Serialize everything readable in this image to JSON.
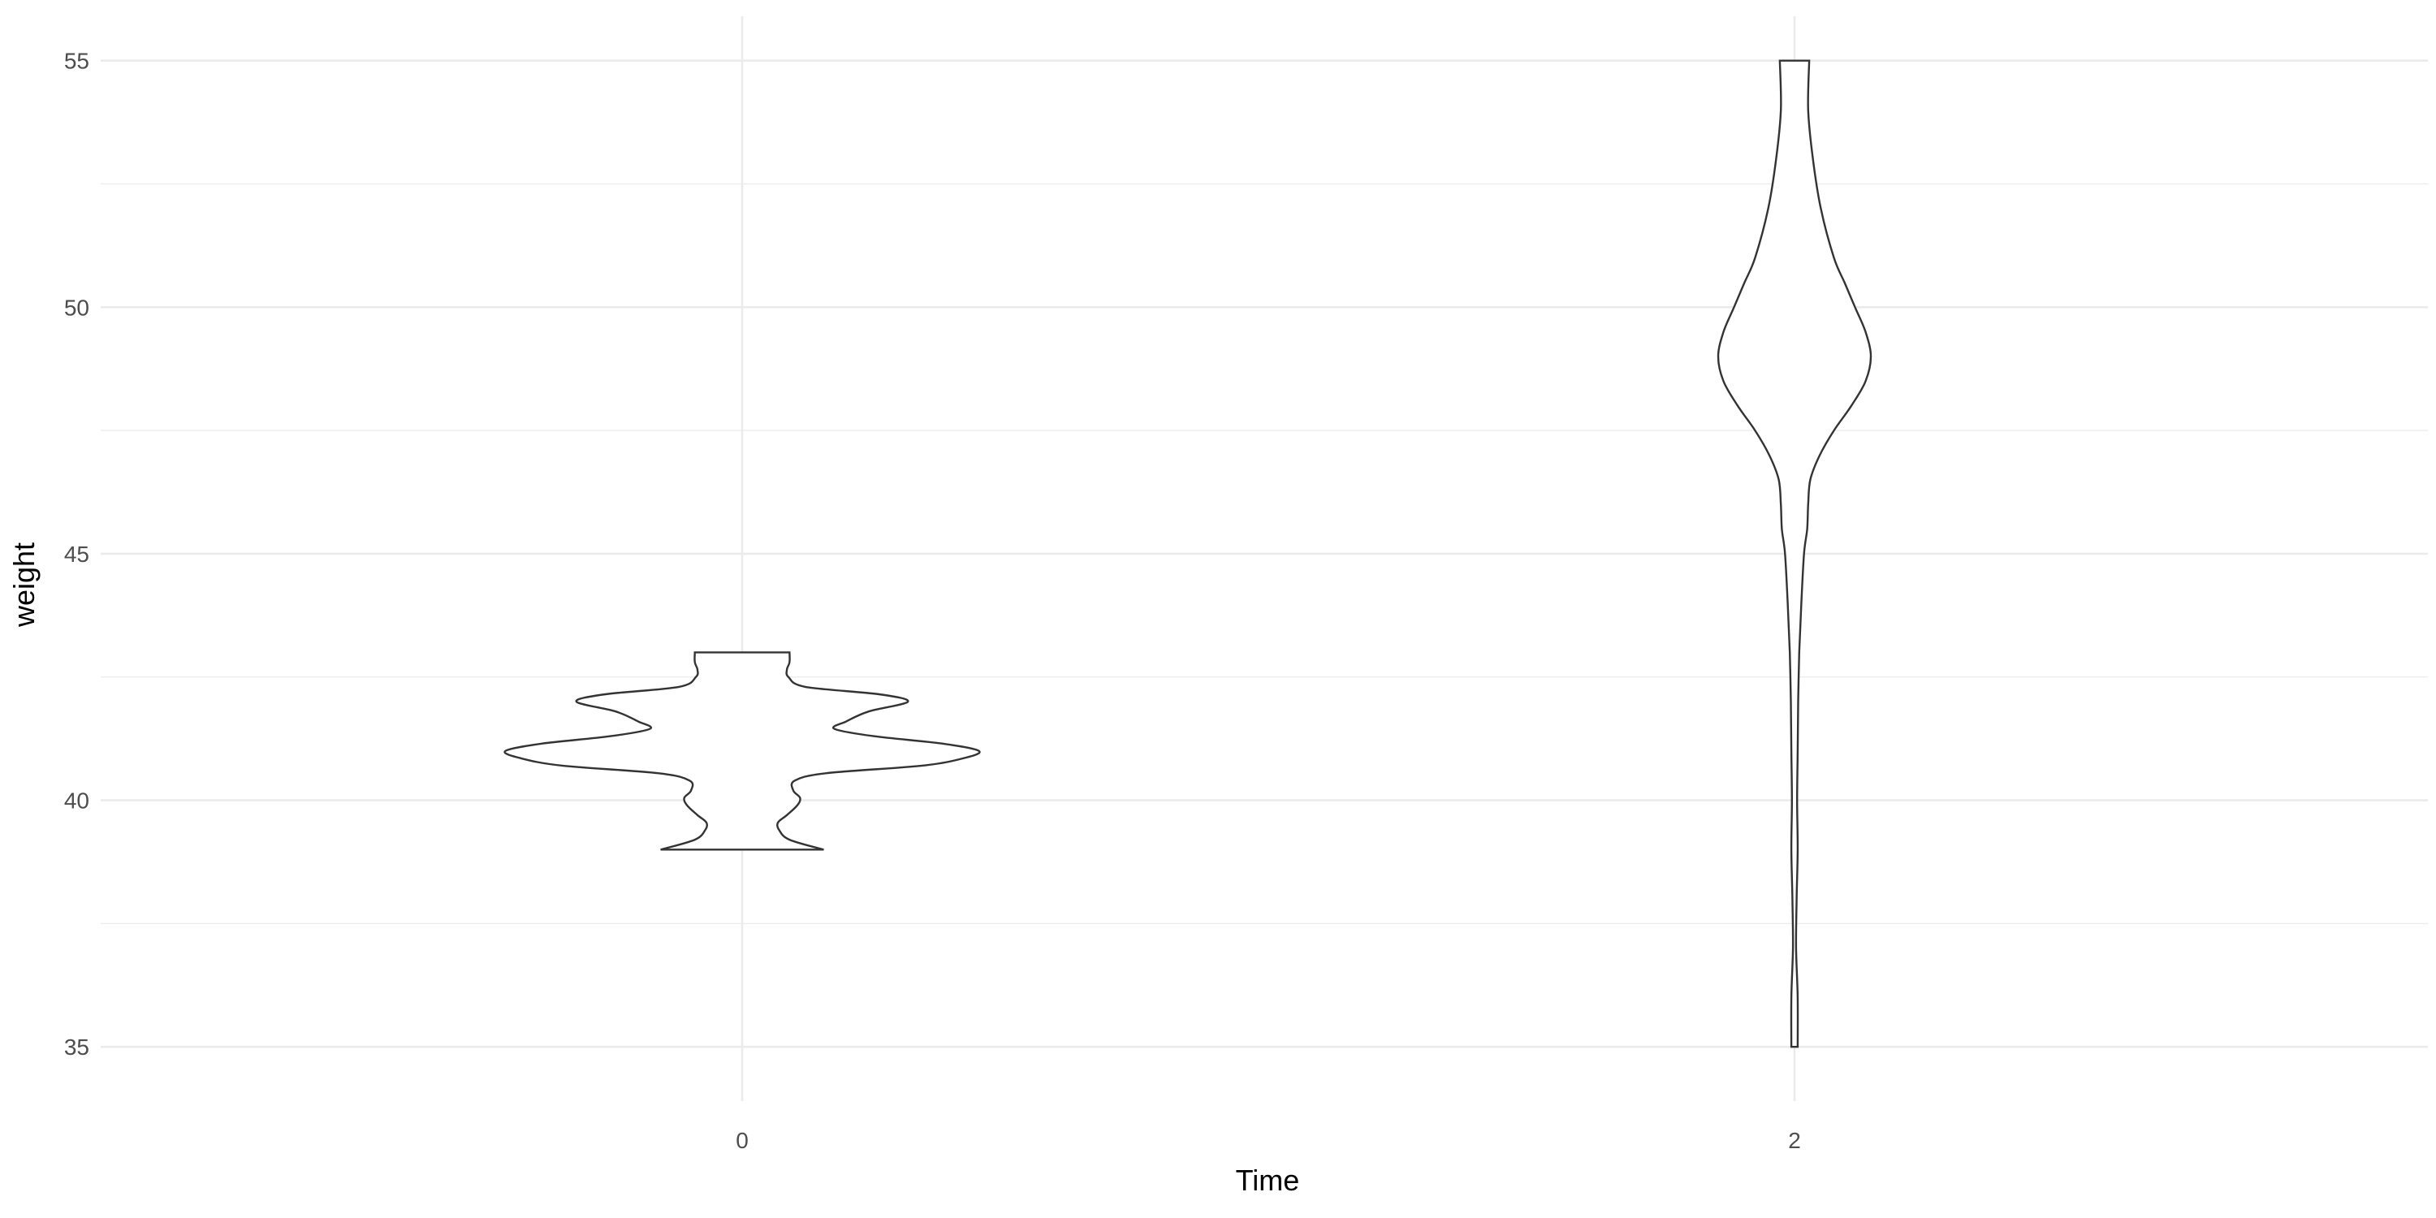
{
  "chart_data": {
    "type": "violin",
    "xlabel": "Time",
    "ylabel": "weight",
    "ylim": [
      33.9,
      55.9
    ],
    "y_ticks": [
      35,
      40,
      45,
      50,
      55
    ],
    "y_minor_ticks": [
      37.5,
      42.5,
      47.5,
      52.5
    ],
    "categories": [
      "0",
      "2"
    ],
    "grid": true,
    "legend": "none",
    "colors": {
      "outline": "#333333",
      "grid": "#ebebeb",
      "fill": "#ffffff"
    },
    "violins": [
      {
        "category": "0",
        "y_min": 39,
        "y_max": 43,
        "density_halfwidth": [
          [
            39.0,
            0.155
          ],
          [
            39.2,
            0.09
          ],
          [
            39.4,
            0.07
          ],
          [
            39.55,
            0.068
          ],
          [
            39.7,
            0.085
          ],
          [
            39.9,
            0.105
          ],
          [
            40.05,
            0.11
          ],
          [
            40.2,
            0.097
          ],
          [
            40.4,
            0.1
          ],
          [
            40.55,
            0.16
          ],
          [
            40.7,
            0.34
          ],
          [
            40.85,
            0.42
          ],
          [
            41.0,
            0.45
          ],
          [
            41.15,
            0.38
          ],
          [
            41.3,
            0.25
          ],
          [
            41.45,
            0.175
          ],
          [
            41.6,
            0.198
          ],
          [
            41.8,
            0.24
          ],
          [
            42.0,
            0.315
          ],
          [
            42.15,
            0.26
          ],
          [
            42.3,
            0.12
          ],
          [
            42.5,
            0.088
          ],
          [
            42.65,
            0.085
          ],
          [
            42.8,
            0.09
          ],
          [
            43.0,
            0.09
          ]
        ]
      },
      {
        "category": "2",
        "y_min": 35,
        "y_max": 55,
        "density_halfwidth": [
          [
            35.0,
            0.006
          ],
          [
            36.0,
            0.006
          ],
          [
            37.0,
            0.003
          ],
          [
            38.0,
            0.004
          ],
          [
            39.0,
            0.006
          ],
          [
            40.0,
            0.005
          ],
          [
            41.0,
            0.006
          ],
          [
            42.0,
            0.007
          ],
          [
            43.0,
            0.009
          ],
          [
            44.0,
            0.013
          ],
          [
            45.0,
            0.018
          ],
          [
            45.5,
            0.024
          ],
          [
            46.0,
            0.026
          ],
          [
            46.5,
            0.03
          ],
          [
            47.0,
            0.048
          ],
          [
            47.5,
            0.075
          ],
          [
            48.0,
            0.108
          ],
          [
            48.5,
            0.135
          ],
          [
            49.0,
            0.145
          ],
          [
            49.5,
            0.135
          ],
          [
            50.0,
            0.115
          ],
          [
            50.5,
            0.095
          ],
          [
            51.0,
            0.075
          ],
          [
            52.0,
            0.05
          ],
          [
            53.0,
            0.035
          ],
          [
            54.0,
            0.026
          ],
          [
            55.0,
            0.028
          ]
        ]
      }
    ]
  }
}
